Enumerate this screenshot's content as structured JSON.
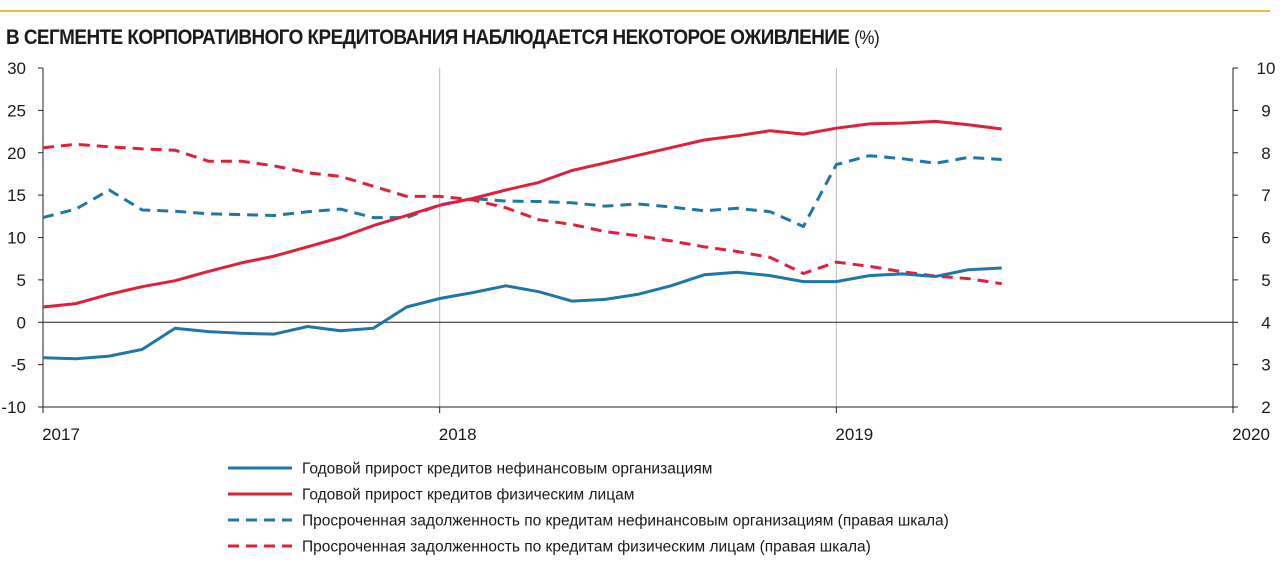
{
  "title": "В СЕГМЕНТЕ КОРПОРАТИВНОГО КРЕДИТОВАНИЯ НАБЛЮДАЕТСЯ НЕКОТОРОЕ ОЖИВЛЕНИЕ",
  "title_unit": "(%)",
  "colors": {
    "blue": "#1f77a8",
    "red": "#e0203a",
    "grid": "#bbbbbb",
    "rule": "#f2b84b"
  },
  "chart_data": {
    "type": "line",
    "title": "В СЕГМЕНТЕ КОРПОРАТИВНОГО КРЕДИТОВАНИЯ НАБЛЮДАЕТСЯ НЕКОТОРОЕ ОЖИВЛЕНИЕ (%)",
    "xlim": [
      2017,
      2020
    ],
    "x_ticks": [
      "2017",
      "2018",
      "2019",
      "2020"
    ],
    "x_tick_values": [
      2017,
      2018,
      2019,
      2020
    ],
    "ylim_left": [
      -10,
      30
    ],
    "y_ticks_left": [
      "30",
      "25",
      "20",
      "15",
      "10",
      "5",
      "0",
      "-5",
      "-10"
    ],
    "y_tick_values_left": [
      30,
      25,
      20,
      15,
      10,
      5,
      0,
      -5,
      -10
    ],
    "ylim_right": [
      2,
      10
    ],
    "y_ticks_right": [
      "10",
      "9",
      "8",
      "7",
      "6",
      "5",
      "4",
      "3",
      "2"
    ],
    "y_tick_values_right": [
      10,
      9,
      8,
      7,
      6,
      5,
      4,
      3,
      2
    ],
    "grid": "vertical lines at year marks",
    "legend_position": "bottom",
    "months": [
      2017.0,
      2017.083,
      2017.167,
      2017.25,
      2017.333,
      2017.417,
      2017.5,
      2017.583,
      2017.667,
      2017.75,
      2017.833,
      2017.917,
      2018.0,
      2018.083,
      2018.167,
      2018.25,
      2018.333,
      2018.417,
      2018.5,
      2018.583,
      2018.667,
      2018.75,
      2018.833,
      2018.917,
      2019.0,
      2019.083,
      2019.167,
      2019.25,
      2019.333,
      2019.417
    ],
    "series": [
      {
        "name": "Годовой прирост кредитов нефинансовым организациям",
        "axis": "left",
        "style": "solid",
        "color": "#1f77a8",
        "values": [
          -4.2,
          -4.3,
          -4.0,
          -3.2,
          -0.7,
          -1.1,
          -1.3,
          -1.4,
          -0.5,
          -1.0,
          -0.7,
          1.8,
          2.8,
          3.5,
          4.3,
          3.6,
          2.5,
          2.7,
          3.3,
          4.3,
          5.6,
          5.9,
          5.5,
          4.8,
          4.8,
          5.5,
          5.7,
          5.4,
          6.2,
          6.4
        ]
      },
      {
        "name": "Годовой прирост кредитов физическим лицам",
        "axis": "left",
        "style": "solid",
        "color": "#e0203a",
        "values": [
          1.8,
          2.2,
          3.3,
          4.2,
          4.9,
          6.0,
          7.0,
          7.8,
          8.9,
          10.0,
          11.4,
          12.6,
          13.8,
          14.6,
          15.6,
          16.5,
          17.9,
          18.8,
          19.7,
          20.6,
          21.5,
          22.0,
          22.6,
          22.2,
          22.9,
          23.4,
          23.5,
          23.7,
          23.3,
          22.8
        ]
      },
      {
        "name": "Просроченная задолженность по кредитам нефинансовым организациям (правая шкала)",
        "axis": "right",
        "style": "dashed",
        "color": "#1f77a8",
        "values": [
          6.47,
          6.67,
          7.12,
          6.65,
          6.62,
          6.56,
          6.54,
          6.52,
          6.61,
          6.67,
          6.47,
          6.47,
          6.77,
          6.92,
          6.86,
          6.85,
          6.82,
          6.74,
          6.79,
          6.72,
          6.63,
          6.69,
          6.61,
          6.26,
          7.72,
          7.93,
          7.86,
          7.75,
          7.89,
          7.84
        ]
      },
      {
        "name": "Просроченная задолженность по кредитам физическим лицам (правая шкала)",
        "axis": "right",
        "style": "dashed",
        "color": "#e0203a",
        "values": [
          8.12,
          8.2,
          8.14,
          8.09,
          8.06,
          7.8,
          7.8,
          7.69,
          7.53,
          7.44,
          7.21,
          6.97,
          6.97,
          6.89,
          6.7,
          6.42,
          6.31,
          6.14,
          6.04,
          5.92,
          5.78,
          5.67,
          5.53,
          5.15,
          5.42,
          5.32,
          5.19,
          5.09,
          5.03,
          4.91
        ]
      }
    ]
  }
}
